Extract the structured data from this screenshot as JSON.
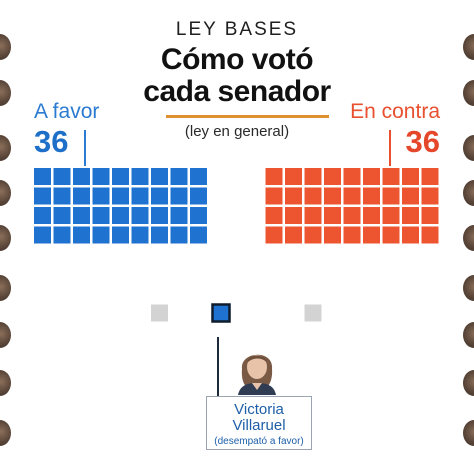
{
  "header": {
    "kicker": "LEY BASES",
    "title_line1": "Cómo votó",
    "title_line2": "cada senador",
    "subtitle": "(ley en general)"
  },
  "favor": {
    "label": "A favor",
    "count": "36"
  },
  "contra": {
    "label": "En contra",
    "count": "36"
  },
  "tiebreaker": {
    "first_name": "Victoria",
    "last_name": "Villaruel",
    "note": "(desempató a favor)"
  },
  "colors": {
    "favor": "#1f72d0",
    "contra": "#ec5530",
    "empty": "#d3d3d3",
    "accent_rule": "#e0912f",
    "tiebreak_border": "#0e1c2c"
  },
  "chart_data": {
    "type": "waffle",
    "title": "Cómo votó cada senador",
    "subtitle": "(ley en general)",
    "series": [
      {
        "name": "A favor",
        "values": [
          36
        ]
      },
      {
        "name": "En contra",
        "values": [
          36
        ]
      }
    ],
    "grid": {
      "columns": 10,
      "rows": 8
    },
    "favor_seats": 36,
    "contra_seats": 36,
    "tiebreak_votes": 1
  }
}
